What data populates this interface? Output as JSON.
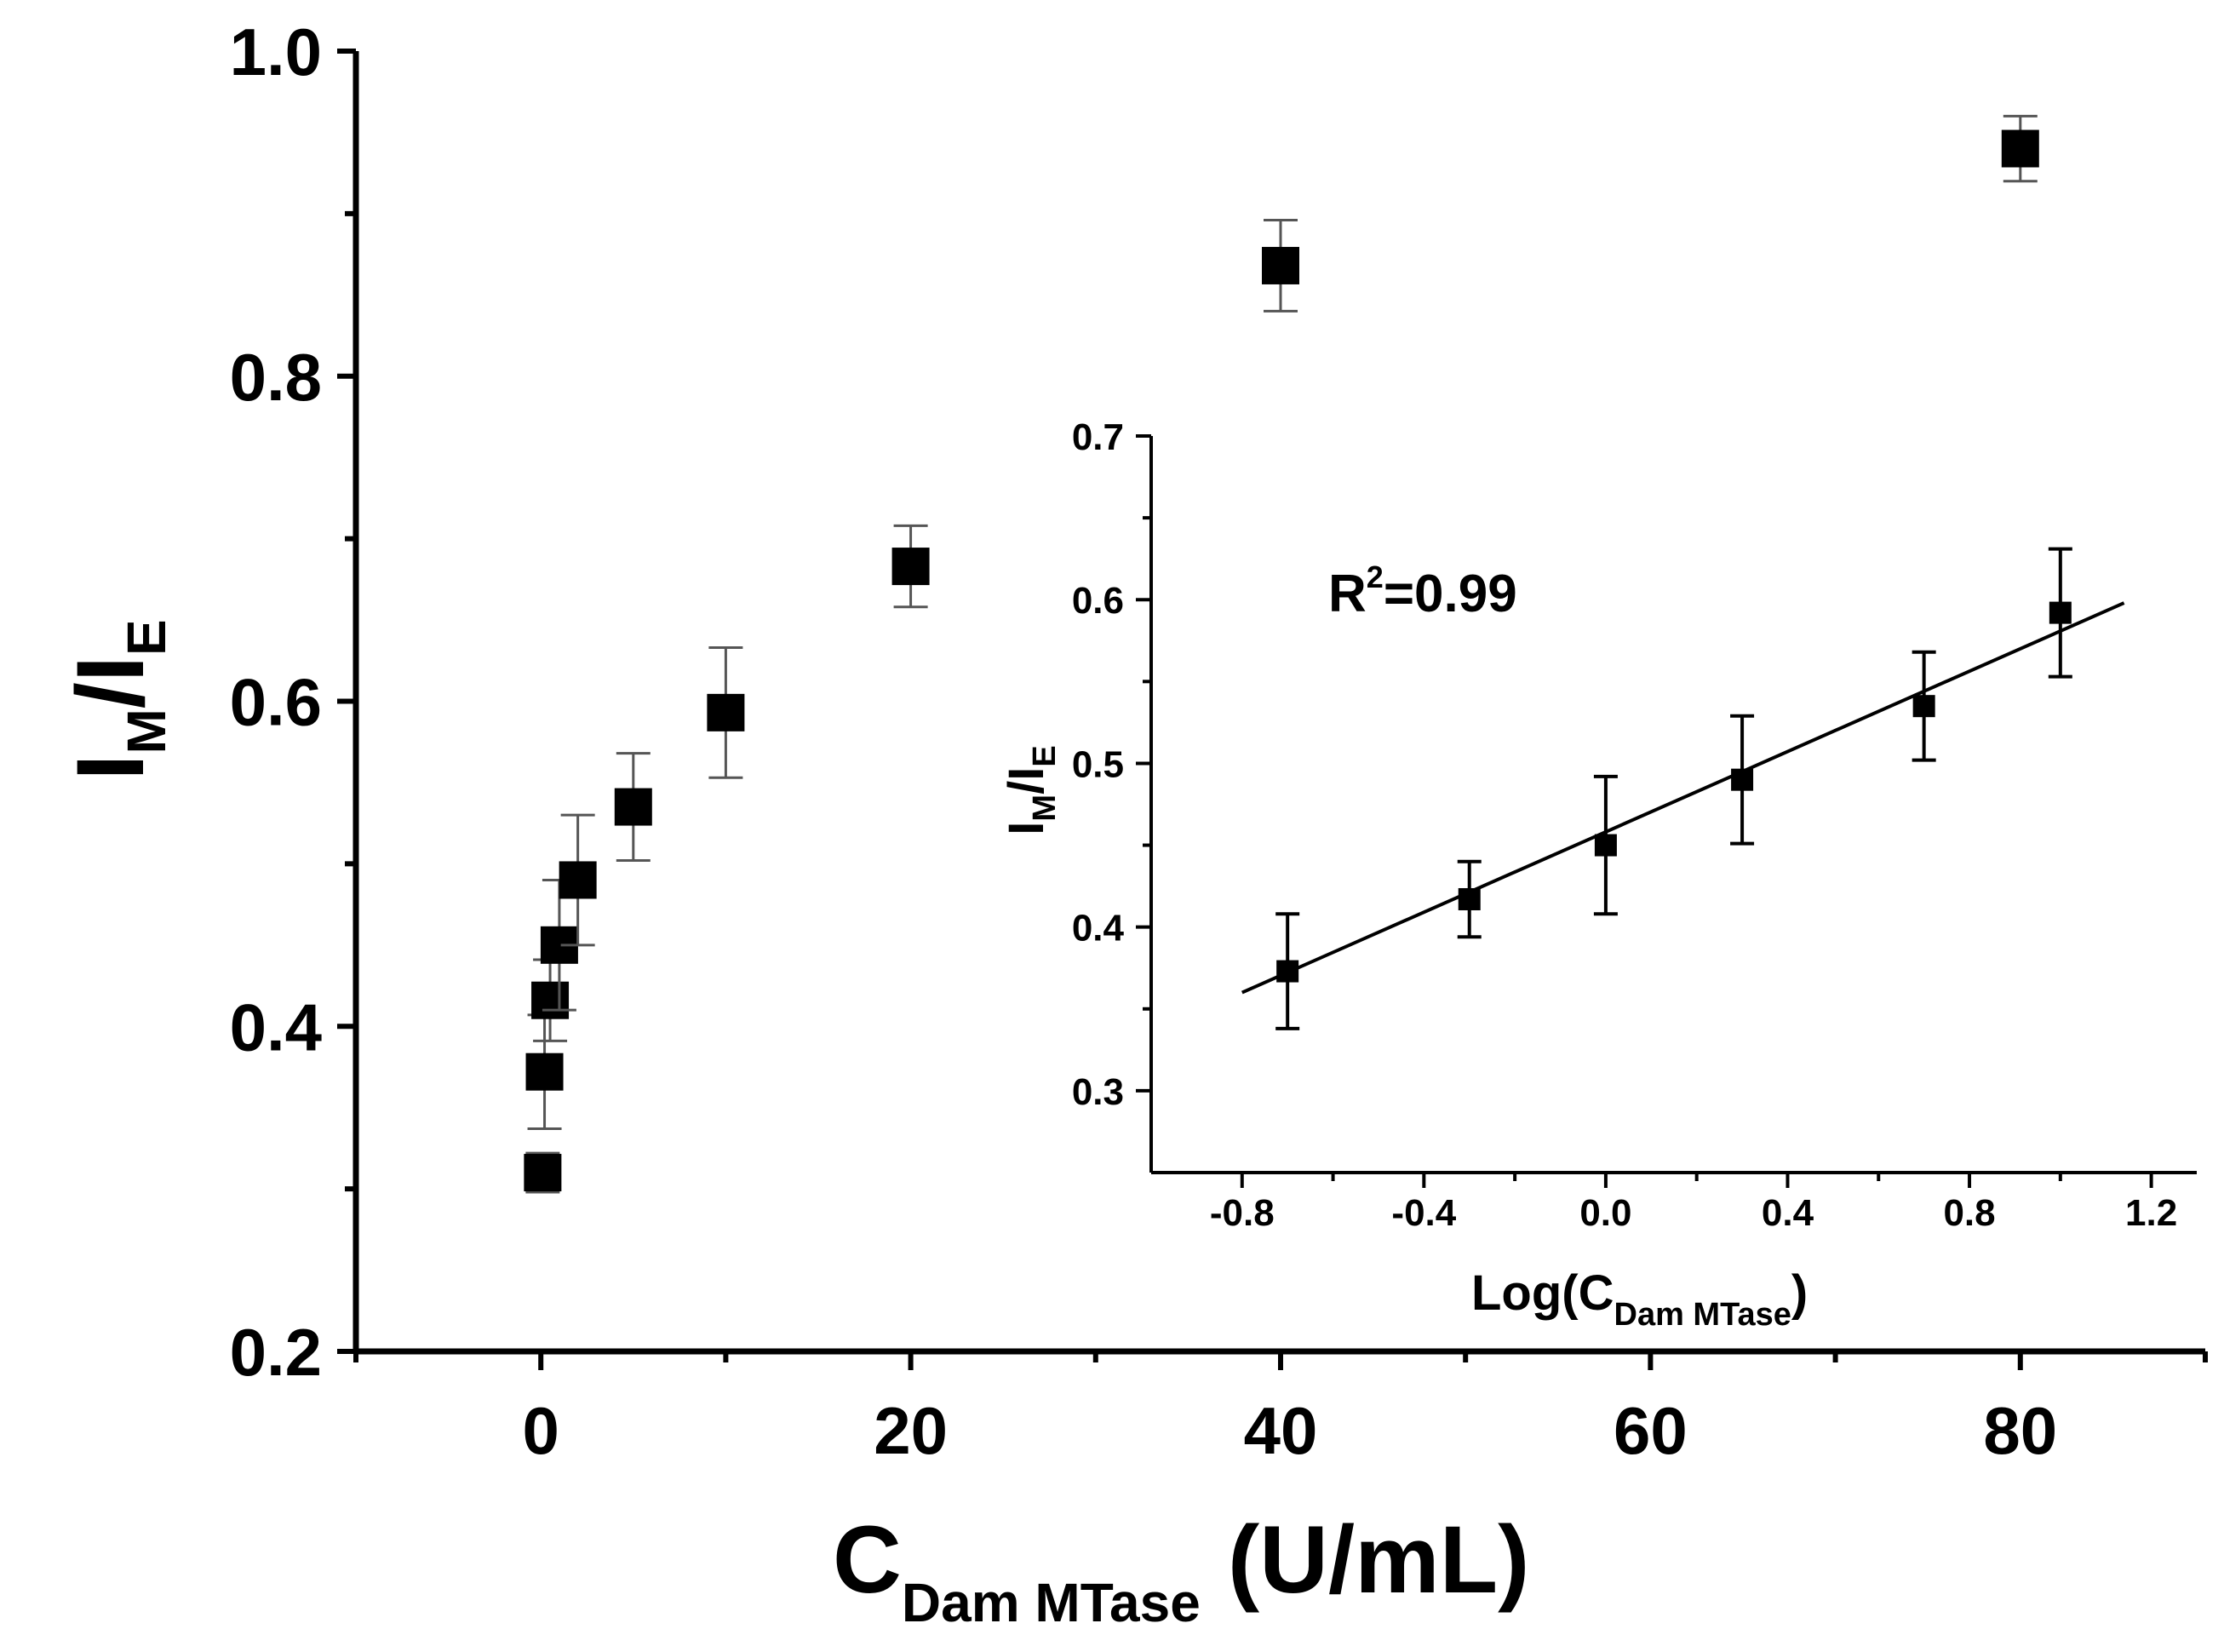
{
  "chart_data": [
    {
      "id": "main",
      "type": "scatter",
      "title": "",
      "xlabel": {
        "main": "C",
        "sub": "Dam MTase",
        "unit": "(U/mL)"
      },
      "ylabel": {
        "main": "I",
        "sub1": "M",
        "slash": "/I",
        "sub2": "E"
      },
      "xlim": [
        -10,
        90
      ],
      "ylim": [
        0.2,
        1.0
      ],
      "xticks": [
        0,
        20,
        40,
        60,
        80
      ],
      "xtick_labels": [
        "0",
        "20",
        "40",
        "60",
        "80"
      ],
      "xminor": [
        -10,
        10,
        30,
        50,
        70,
        90
      ],
      "yticks": [
        0.2,
        0.4,
        0.6,
        0.8,
        1.0
      ],
      "ytick_labels": [
        "0.2",
        "0.4",
        "0.6",
        "0.8",
        "1.0"
      ],
      "yminor": [
        0.3,
        0.5,
        0.7,
        0.9
      ],
      "series": [
        {
          "name": "I_M/I_E",
          "x": [
            0.1,
            0.2,
            0.5,
            1,
            2,
            5,
            10,
            20,
            40,
            80
          ],
          "y": [
            0.31,
            0.372,
            0.416,
            0.45,
            0.49,
            0.535,
            0.593,
            0.683,
            0.868,
            0.94
          ],
          "err": [
            0.012,
            0.035,
            0.025,
            0.04,
            0.04,
            0.033,
            0.04,
            0.025,
            0.028,
            0.02
          ]
        }
      ]
    },
    {
      "id": "inset",
      "type": "scatter",
      "title": "",
      "xlabel": {
        "main": "Log(C",
        "sub": "Dam MTase",
        "close": ")"
      },
      "ylabel": {
        "main": "I",
        "sub1": "M",
        "slash": "/I",
        "sub2": "E"
      },
      "annotation": {
        "base": "R",
        "sup": "2",
        "rest": "=0.99"
      },
      "xlim": [
        -1.0,
        1.3
      ],
      "ylim": [
        0.25,
        0.7
      ],
      "xticks": [
        -0.8,
        -0.4,
        0.0,
        0.4,
        0.8,
        1.2
      ],
      "xtick_labels": [
        "-0.8",
        "-0.4",
        "0.0",
        "0.4",
        "0.8",
        "1.2"
      ],
      "xminor": [
        -0.6,
        -0.2,
        0.2,
        0.6,
        1.0
      ],
      "yticks": [
        0.3,
        0.4,
        0.5,
        0.6,
        0.7
      ],
      "ytick_labels": [
        "0.3",
        "0.4",
        "0.5",
        "0.6",
        "0.7"
      ],
      "yminor": [
        0.35,
        0.45,
        0.55,
        0.65
      ],
      "series": [
        {
          "name": "I_M/I_E",
          "x": [
            -0.7,
            -0.3,
            0.0,
            0.3,
            0.7,
            1.0
          ],
          "y": [
            0.373,
            0.417,
            0.45,
            0.49,
            0.535,
            0.592
          ],
          "err": [
            0.035,
            0.023,
            0.042,
            0.039,
            0.033,
            0.039
          ]
        }
      ],
      "fit_line": {
        "x": [
          -0.8,
          1.14
        ],
        "y": [
          0.36,
          0.598
        ]
      }
    }
  ]
}
